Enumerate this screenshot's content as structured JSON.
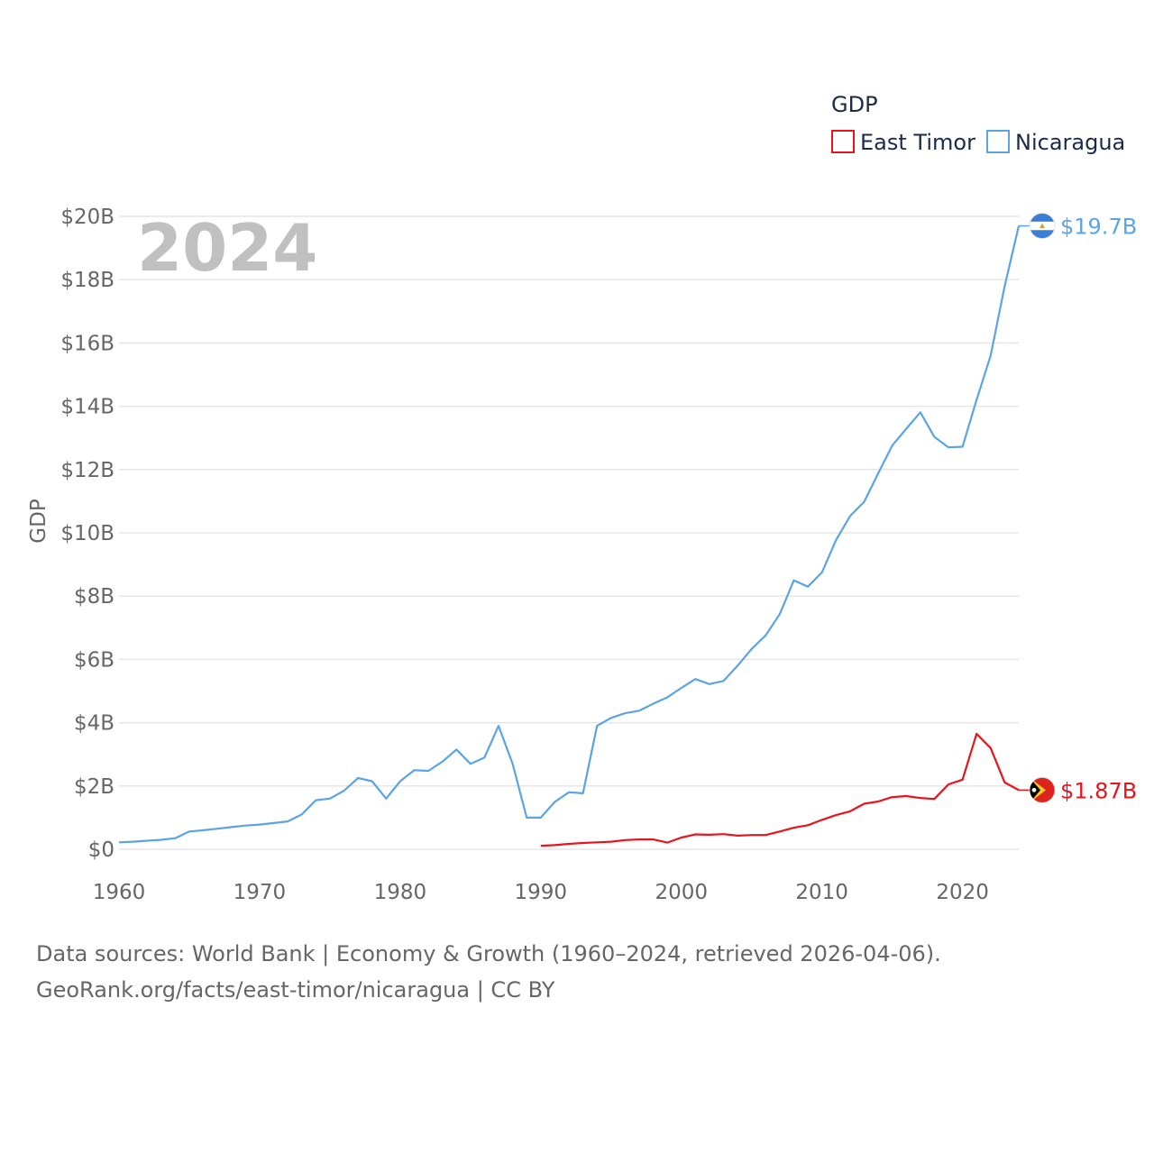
{
  "chart_data": {
    "type": "line",
    "title": "GDP",
    "current_year_label": "2024",
    "ylabel": "GDP",
    "xlabel": "",
    "xlim": [
      1960,
      2024
    ],
    "ylim": [
      0,
      20
    ],
    "x_ticks": [
      1960,
      1970,
      1980,
      1990,
      2000,
      2010,
      2020
    ],
    "x_tick_labels": [
      "1960",
      "1970",
      "1980",
      "1990",
      "2000",
      "2010",
      "2020"
    ],
    "y_ticks": [
      0,
      2,
      4,
      6,
      8,
      10,
      12,
      14,
      16,
      18,
      20
    ],
    "y_tick_labels": [
      "$0",
      "$2B",
      "$4B",
      "$6B",
      "$8B",
      "$10B",
      "$12B",
      "$14B",
      "$16B",
      "$18B",
      "$20B"
    ],
    "grid": true,
    "legend_position": "top-right",
    "series": [
      {
        "name": "East Timor",
        "color": "#e8141c",
        "flag_icon": "east-timor-flag-icon",
        "end_label": "$1.87B",
        "x": [
          1990,
          1991,
          1992,
          1993,
          1994,
          1995,
          1996,
          1997,
          1998,
          1999,
          2000,
          2001,
          2002,
          2003,
          2004,
          2005,
          2006,
          2007,
          2008,
          2009,
          2010,
          2011,
          2012,
          2013,
          2014,
          2015,
          2016,
          2017,
          2018,
          2019,
          2020,
          2021,
          2022,
          2023,
          2024
        ],
        "values": [
          0.11,
          0.13,
          0.17,
          0.2,
          0.22,
          0.24,
          0.29,
          0.31,
          0.31,
          0.21,
          0.37,
          0.47,
          0.46,
          0.48,
          0.43,
          0.45,
          0.45,
          0.56,
          0.68,
          0.76,
          0.93,
          1.08,
          1.2,
          1.44,
          1.51,
          1.65,
          1.68,
          1.62,
          1.59,
          2.05,
          2.2,
          3.65,
          3.2,
          2.11,
          1.87
        ]
      },
      {
        "name": "Nicaragua",
        "color": "#5ba4e3",
        "flag_icon": "nicaragua-flag-icon",
        "end_label": "$19.7B",
        "x": [
          1960,
          1961,
          1962,
          1963,
          1964,
          1965,
          1966,
          1967,
          1968,
          1969,
          1970,
          1971,
          1972,
          1973,
          1974,
          1975,
          1976,
          1977,
          1978,
          1979,
          1980,
          1981,
          1982,
          1983,
          1984,
          1985,
          1986,
          1987,
          1988,
          1989,
          1990,
          1991,
          1992,
          1993,
          1994,
          1995,
          1996,
          1997,
          1998,
          1999,
          2000,
          2001,
          2002,
          2003,
          2004,
          2005,
          2006,
          2007,
          2008,
          2009,
          2010,
          2011,
          2012,
          2013,
          2014,
          2015,
          2016,
          2017,
          2018,
          2019,
          2020,
          2021,
          2022,
          2023,
          2024
        ],
        "values": [
          0.22,
          0.24,
          0.27,
          0.3,
          0.35,
          0.56,
          0.6,
          0.65,
          0.7,
          0.75,
          0.78,
          0.83,
          0.88,
          1.1,
          1.55,
          1.6,
          1.85,
          2.25,
          2.15,
          1.6,
          2.15,
          2.5,
          2.48,
          2.77,
          3.15,
          2.7,
          2.9,
          3.9,
          2.7,
          1.0,
          1.0,
          1.5,
          1.8,
          1.77,
          3.9,
          4.15,
          4.3,
          4.38,
          4.6,
          4.8,
          5.1,
          5.38,
          5.22,
          5.32,
          5.8,
          6.33,
          6.76,
          7.43,
          8.5,
          8.3,
          8.75,
          9.77,
          10.53,
          10.98,
          11.88,
          12.76,
          13.29,
          13.81,
          13.03,
          12.7,
          12.72,
          14.2,
          15.6,
          17.8,
          19.7
        ]
      }
    ]
  },
  "footer": {
    "line1": "Data sources: World Bank | Economy & Growth (1960–2024, retrieved 2026-04-06).",
    "line2": "GeoRank.org/facts/east-timor/nicaragua | CC BY"
  }
}
